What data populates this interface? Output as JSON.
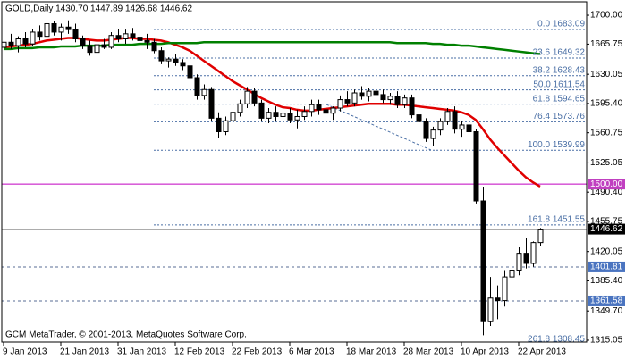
{
  "chart_data": {
    "type": "candlestick",
    "title": "GOLD,Daily  1430.70 1447.89 1426.68 1446.62",
    "footer": "GCM MetaTrader, © 2001-2013, MetaQuotes Software Corp.",
    "ylim": [
      1312.9,
      1715.9
    ],
    "yticks": [
      {
        "value": 1700,
        "label": "1700.00"
      },
      1665.75,
      1630.05,
      {
        "value": 1595.4,
        "label": "1595.40"
      },
      1560.75,
      1525.05,
      {
        "value": 1490.4,
        "label": "1490.40"
      },
      1455.75,
      1420.05,
      {
        "value": 1385.4,
        "label": "1385.40"
      },
      {
        "value": 1349.7,
        "label": "1349.70"
      },
      1315.05
    ],
    "xticks": [
      {
        "value": 0,
        "label": "9 Jan 2013"
      },
      {
        "value": 8,
        "label": "21 Jan 2013"
      },
      {
        "value": 16,
        "label": "31 Jan 2013"
      },
      {
        "value": 24,
        "label": "12 Feb 2013"
      },
      {
        "value": 32,
        "label": "22 Feb 2013"
      },
      {
        "value": 40,
        "label": "6 Mar 2013"
      },
      {
        "value": 48,
        "label": "18 Mar 2013"
      },
      {
        "value": 56,
        "label": "28 Mar 2013"
      },
      {
        "value": 64,
        "label": "10 Apr 2013"
      },
      {
        "value": 72,
        "label": "22 Apr 2013"
      }
    ],
    "open": [
      1662,
      1668,
      1664,
      1672,
      1666,
      1680,
      1675,
      1690,
      1680,
      1686,
      1683,
      1672,
      1664,
      1656,
      1665,
      1662,
      1676,
      1672,
      1678,
      1674,
      1670,
      1668,
      1658,
      1646,
      1648,
      1644,
      1640,
      1626,
      1605,
      1612,
      1578,
      1562,
      1575,
      1585,
      1595,
      1610,
      1596,
      1578,
      1585,
      1580,
      1584,
      1576,
      1580,
      1586,
      1594,
      1588,
      1584,
      1590,
      1600,
      1596,
      1608,
      1604,
      1610,
      1606,
      1600,
      1604,
      1594,
      1602,
      1582,
      1574,
      1554,
      1564,
      1574,
      1586,
      1565,
      1570,
      1562,
      1480,
      1337,
      1365,
      1362,
      1390,
      1398,
      1418,
      1406,
      1430.7
    ],
    "high": [
      1672,
      1678,
      1675,
      1680,
      1684,
      1688,
      1695,
      1693,
      1690,
      1694,
      1690,
      1676,
      1670,
      1668,
      1672,
      1680,
      1684,
      1683,
      1685,
      1680,
      1678,
      1672,
      1662,
      1650,
      1654,
      1648,
      1644,
      1630,
      1618,
      1615,
      1585,
      1580,
      1590,
      1600,
      1615,
      1614,
      1600,
      1590,
      1592,
      1588,
      1590,
      1588,
      1592,
      1600,
      1600,
      1596,
      1592,
      1605,
      1610,
      1612,
      1616,
      1614,
      1616,
      1612,
      1608,
      1610,
      1606,
      1606,
      1588,
      1578,
      1568,
      1578,
      1590,
      1592,
      1575,
      1574,
      1565,
      1497,
      1390,
      1380,
      1398,
      1405,
      1425,
      1436,
      1432,
      1447.89
    ],
    "low": [
      1655,
      1660,
      1656,
      1662,
      1663,
      1670,
      1672,
      1676,
      1670,
      1678,
      1668,
      1660,
      1652,
      1654,
      1660,
      1660,
      1668,
      1666,
      1670,
      1666,
      1660,
      1655,
      1642,
      1638,
      1640,
      1635,
      1622,
      1600,
      1600,
      1575,
      1555,
      1558,
      1570,
      1580,
      1590,
      1592,
      1574,
      1572,
      1575,
      1574,
      1572,
      1566,
      1576,
      1580,
      1582,
      1580,
      1576,
      1586,
      1592,
      1592,
      1600,
      1598,
      1602,
      1596,
      1594,
      1590,
      1590,
      1578,
      1570,
      1550,
      1545,
      1558,
      1570,
      1560,
      1556,
      1558,
      1477,
      1321,
      1332,
      1340,
      1355,
      1380,
      1392,
      1400,
      1402,
      1426.68
    ],
    "close": [
      1668,
      1664,
      1672,
      1666,
      1680,
      1675,
      1690,
      1680,
      1686,
      1683,
      1672,
      1664,
      1656,
      1665,
      1662,
      1676,
      1672,
      1678,
      1674,
      1670,
      1668,
      1658,
      1646,
      1648,
      1644,
      1640,
      1626,
      1605,
      1612,
      1578,
      1562,
      1575,
      1585,
      1595,
      1610,
      1596,
      1578,
      1585,
      1580,
      1584,
      1576,
      1580,
      1586,
      1594,
      1588,
      1584,
      1590,
      1600,
      1596,
      1608,
      1604,
      1610,
      1606,
      1600,
      1604,
      1594,
      1602,
      1582,
      1574,
      1554,
      1564,
      1574,
      1586,
      1565,
      1570,
      1562,
      1480,
      1337,
      1365,
      1362,
      1390,
      1398,
      1418,
      1406,
      1430.7,
      1446.62
    ],
    "series": [
      {
        "color": "#e00000",
        "values": [
          1662,
          1663,
          1664,
          1665,
          1666,
          1668,
          1670,
          1671,
          1672,
          1673,
          1673,
          1672,
          1671,
          1670,
          1670,
          1671,
          1672,
          1673,
          1673,
          1672,
          1672,
          1671,
          1670,
          1668,
          1665,
          1662,
          1658,
          1652,
          1646,
          1640,
          1634,
          1628,
          1622,
          1617,
          1612,
          1607,
          1602,
          1598,
          1594,
          1591,
          1590,
          1588,
          1587,
          1587,
          1588,
          1589,
          1590,
          1591,
          1592,
          1593,
          1594,
          1595,
          1595,
          1595,
          1595,
          1594,
          1594,
          1593,
          1592,
          1591,
          1590,
          1589,
          1588,
          1587,
          1585,
          1582,
          1576,
          1565,
          1553,
          1543,
          1534,
          1525,
          1516,
          1508,
          1502,
          1497
        ]
      },
      {
        "color": "#008000",
        "values": [
          1660,
          1660,
          1661,
          1661,
          1661,
          1662,
          1662,
          1662,
          1663,
          1663,
          1663,
          1664,
          1664,
          1664,
          1664,
          1665,
          1665,
          1665,
          1665,
          1666,
          1666,
          1666,
          1666,
          1667,
          1667,
          1667,
          1667,
          1667,
          1668,
          1668,
          1668,
          1668,
          1668,
          1668,
          1668,
          1668,
          1668,
          1668,
          1668,
          1668,
          1668,
          1668,
          1668,
          1668,
          1668,
          1668,
          1668,
          1668,
          1668,
          1668,
          1668,
          1668,
          1668,
          1668,
          1668,
          1667,
          1667,
          1667,
          1667,
          1667,
          1666,
          1666,
          1665,
          1665,
          1664,
          1664,
          1663,
          1662,
          1661,
          1660,
          1659,
          1658,
          1657,
          1656,
          1655,
          1654
        ]
      }
    ],
    "levels": [
      {
        "value": 1500,
        "label": "1500.00",
        "color": "#c000c0",
        "tag": "#c040c0",
        "dash": false
      },
      {
        "value": 1446.62,
        "label": "1446.62",
        "color": "#a0a0a0",
        "tag": "#000000",
        "dash": false
      },
      {
        "value": 1401.81,
        "label": "1401.81",
        "color": "#5a6e96",
        "tag": "#4a74c0",
        "dash": true
      },
      {
        "value": 1361.58,
        "label": "1361.58",
        "color": "#5a6e96",
        "tag": "#4a74c0",
        "dash": true
      }
    ],
    "fibonacci": {
      "color": "#4a6fa5",
      "levels": [
        {
          "value": 1683.09,
          "label": "0.0 1683.09"
        },
        {
          "value": 1649.32,
          "label": "23.6 1649.32"
        },
        {
          "value": 1628.43,
          "label": "38.2 1628.43"
        },
        {
          "value": 1611.54,
          "label": "50.0 1611.54"
        },
        {
          "value": 1594.65,
          "label": "61.8 1594.65"
        },
        {
          "value": 1573.76,
          "label": "76.4 1573.76"
        },
        {
          "value": 1539.99,
          "label": "100.0 1539.99"
        },
        {
          "value": 1451.55,
          "label": "161.8 1451.55"
        },
        {
          "value": 1308.45,
          "label": "261.8 1308.45"
        }
      ]
    }
  }
}
